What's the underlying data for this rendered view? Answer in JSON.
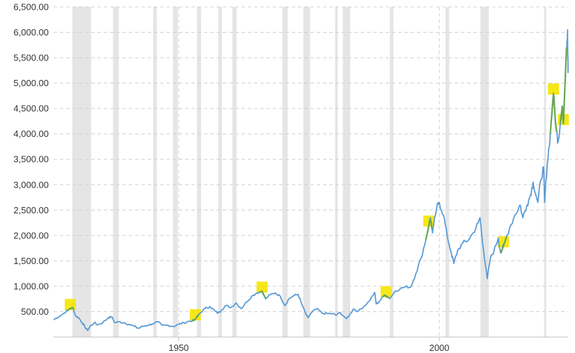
{
  "chart_data": {
    "type": "line",
    "title": "",
    "xlabel": "",
    "ylabel": "",
    "xlim": [
      1926,
      2024.7
    ],
    "ylim": [
      0,
      6500
    ],
    "y_ticks": [
      {
        "value": 500,
        "label": "500.00"
      },
      {
        "value": 1000,
        "label": "1,000.00"
      },
      {
        "value": 1500,
        "label": "1,500.00"
      },
      {
        "value": 2000,
        "label": "2,000.00"
      },
      {
        "value": 2500,
        "label": "2,500.00"
      },
      {
        "value": 3000,
        "label": "3,000.00"
      },
      {
        "value": 3500,
        "label": "3,500.00"
      },
      {
        "value": 4000,
        "label": "4,000.00"
      },
      {
        "value": 4500,
        "label": "4,500.00"
      },
      {
        "value": 5000,
        "label": "5,000.00"
      },
      {
        "value": 5500,
        "label": "5,500.00"
      },
      {
        "value": 6000,
        "label": "6,000.00"
      },
      {
        "value": 6500,
        "label": "6,500.00"
      }
    ],
    "x_ticks": [
      {
        "value": 1950,
        "label": "1950"
      },
      {
        "value": 2000,
        "label": "2000"
      }
    ],
    "grid": true,
    "legend": "none",
    "colors": {
      "line": "#5b9bd5",
      "recession": "#e5e5e5",
      "highlight": "#f5e400",
      "highlight_line": "#6aa84f",
      "grid": "#d0d0d0"
    },
    "recessions": [
      [
        1929.6,
        1933.2
      ],
      [
        1937.4,
        1938.5
      ],
      [
        1945.1,
        1945.8
      ],
      [
        1948.9,
        1949.8
      ],
      [
        1953.5,
        1954.3
      ],
      [
        1957.6,
        1958.3
      ],
      [
        1960.3,
        1961.1
      ],
      [
        1969.9,
        1970.9
      ],
      [
        1973.9,
        1975.2
      ],
      [
        1980.0,
        1980.5
      ],
      [
        1981.5,
        1982.9
      ],
      [
        1990.5,
        1991.2
      ],
      [
        2001.2,
        2001.9
      ],
      [
        2007.9,
        2009.5
      ],
      [
        2020.1,
        2020.4
      ]
    ],
    "highlights": [
      1929.2,
      1953.2,
      1966.0,
      1989.8,
      1998.0,
      2012.3,
      2021.9,
      2023.8
    ],
    "series": [
      {
        "values": [
          [
            1926.0,
            340
          ],
          [
            1927.0,
            400
          ],
          [
            1928.0,
            470
          ],
          [
            1929.0,
            550
          ],
          [
            1929.7,
            580
          ],
          [
            1930.2,
            420
          ],
          [
            1930.8,
            380
          ],
          [
            1931.5,
            280
          ],
          [
            1932.0,
            200
          ],
          [
            1932.5,
            130
          ],
          [
            1933.0,
            210
          ],
          [
            1933.8,
            280
          ],
          [
            1934.5,
            240
          ],
          [
            1935.5,
            290
          ],
          [
            1936.5,
            380
          ],
          [
            1937.1,
            400
          ],
          [
            1937.8,
            280
          ],
          [
            1938.5,
            300
          ],
          [
            1939.5,
            280
          ],
          [
            1940.5,
            250
          ],
          [
            1941.5,
            210
          ],
          [
            1942.3,
            170
          ],
          [
            1943.0,
            210
          ],
          [
            1944.0,
            230
          ],
          [
            1945.0,
            260
          ],
          [
            1946.0,
            300
          ],
          [
            1946.8,
            230
          ],
          [
            1948.0,
            230
          ],
          [
            1949.0,
            210
          ],
          [
            1950.0,
            250
          ],
          [
            1951.0,
            280
          ],
          [
            1952.0,
            310
          ],
          [
            1953.0,
            330
          ],
          [
            1954.0,
            460
          ],
          [
            1955.0,
            560
          ],
          [
            1956.0,
            600
          ],
          [
            1957.0,
            510
          ],
          [
            1957.5,
            470
          ],
          [
            1958.2,
            530
          ],
          [
            1959.0,
            620
          ],
          [
            1960.0,
            580
          ],
          [
            1961.0,
            670
          ],
          [
            1962.0,
            560
          ],
          [
            1963.0,
            690
          ],
          [
            1964.0,
            800
          ],
          [
            1965.0,
            870
          ],
          [
            1966.0,
            900
          ],
          [
            1966.7,
            750
          ],
          [
            1967.5,
            830
          ],
          [
            1968.5,
            870
          ],
          [
            1969.5,
            800
          ],
          [
            1970.4,
            620
          ],
          [
            1971.2,
            760
          ],
          [
            1972.2,
            820
          ],
          [
            1972.9,
            840
          ],
          [
            1973.6,
            650
          ],
          [
            1974.4,
            450
          ],
          [
            1974.8,
            380
          ],
          [
            1975.5,
            480
          ],
          [
            1976.5,
            560
          ],
          [
            1977.5,
            470
          ],
          [
            1978.5,
            460
          ],
          [
            1979.5,
            460
          ],
          [
            1980.2,
            430
          ],
          [
            1981.0,
            480
          ],
          [
            1982.2,
            360
          ],
          [
            1982.7,
            420
          ],
          [
            1983.5,
            550
          ],
          [
            1984.5,
            510
          ],
          [
            1985.5,
            600
          ],
          [
            1986.5,
            700
          ],
          [
            1987.6,
            880
          ],
          [
            1987.9,
            650
          ],
          [
            1988.5,
            700
          ],
          [
            1989.5,
            830
          ],
          [
            1990.5,
            760
          ],
          [
            1991.5,
            900
          ],
          [
            1992.5,
            950
          ],
          [
            1993.5,
            990
          ],
          [
            1994.5,
            980
          ],
          [
            1995.5,
            1250
          ],
          [
            1996.5,
            1550
          ],
          [
            1997.5,
            1950
          ],
          [
            1998.3,
            2350
          ],
          [
            1998.7,
            2050
          ],
          [
            1999.5,
            2550
          ],
          [
            2000.0,
            2650
          ],
          [
            2000.8,
            2400
          ],
          [
            2001.5,
            2000
          ],
          [
            2002.3,
            1650
          ],
          [
            2002.8,
            1450
          ],
          [
            2003.5,
            1700
          ],
          [
            2004.5,
            1850
          ],
          [
            2005.5,
            1900
          ],
          [
            2006.5,
            2050
          ],
          [
            2007.5,
            2250
          ],
          [
            2007.8,
            2350
          ],
          [
            2008.5,
            1700
          ],
          [
            2009.2,
            1150
          ],
          [
            2009.8,
            1550
          ],
          [
            2010.5,
            1700
          ],
          [
            2011.3,
            1950
          ],
          [
            2011.8,
            1650
          ],
          [
            2012.5,
            1850
          ],
          [
            2013.5,
            2150
          ],
          [
            2014.5,
            2400
          ],
          [
            2015.5,
            2600
          ],
          [
            2016.0,
            2350
          ],
          [
            2016.8,
            2600
          ],
          [
            2017.5,
            2800
          ],
          [
            2018.0,
            3050
          ],
          [
            2018.9,
            2650
          ],
          [
            2019.5,
            3100
          ],
          [
            2020.0,
            3350
          ],
          [
            2020.2,
            2650
          ],
          [
            2020.7,
            3400
          ],
          [
            2021.3,
            4000
          ],
          [
            2021.9,
            4800
          ],
          [
            2022.4,
            4100
          ],
          [
            2022.8,
            3850
          ],
          [
            2023.3,
            4300
          ],
          [
            2023.6,
            4550
          ],
          [
            2023.8,
            4200
          ],
          [
            2024.1,
            4950
          ],
          [
            2024.4,
            5700
          ],
          [
            2024.6,
            6050
          ],
          [
            2024.7,
            5200
          ]
        ]
      }
    ]
  }
}
